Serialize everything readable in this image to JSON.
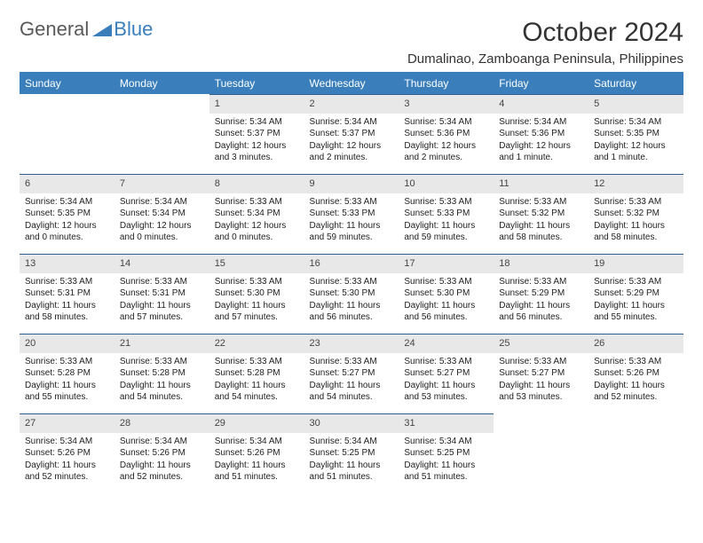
{
  "logo": {
    "general": "General",
    "blue": "Blue"
  },
  "title": "October 2024",
  "location": "Dumalinao, Zamboanga Peninsula, Philippines",
  "colors": {
    "header_bg": "#3a7fbc",
    "header_text": "#ffffff",
    "daynum_bg": "#e8e8e8",
    "divider": "#3a7fbc",
    "daynum_border": "#2c5f8d"
  },
  "weekdays": [
    "Sunday",
    "Monday",
    "Tuesday",
    "Wednesday",
    "Thursday",
    "Friday",
    "Saturday"
  ],
  "weeks": [
    [
      null,
      null,
      {
        "n": "1",
        "sr": "5:34 AM",
        "ss": "5:37 PM",
        "dl": "12 hours and 3 minutes."
      },
      {
        "n": "2",
        "sr": "5:34 AM",
        "ss": "5:37 PM",
        "dl": "12 hours and 2 minutes."
      },
      {
        "n": "3",
        "sr": "5:34 AM",
        "ss": "5:36 PM",
        "dl": "12 hours and 2 minutes."
      },
      {
        "n": "4",
        "sr": "5:34 AM",
        "ss": "5:36 PM",
        "dl": "12 hours and 1 minute."
      },
      {
        "n": "5",
        "sr": "5:34 AM",
        "ss": "5:35 PM",
        "dl": "12 hours and 1 minute."
      }
    ],
    [
      {
        "n": "6",
        "sr": "5:34 AM",
        "ss": "5:35 PM",
        "dl": "12 hours and 0 minutes."
      },
      {
        "n": "7",
        "sr": "5:34 AM",
        "ss": "5:34 PM",
        "dl": "12 hours and 0 minutes."
      },
      {
        "n": "8",
        "sr": "5:33 AM",
        "ss": "5:34 PM",
        "dl": "12 hours and 0 minutes."
      },
      {
        "n": "9",
        "sr": "5:33 AM",
        "ss": "5:33 PM",
        "dl": "11 hours and 59 minutes."
      },
      {
        "n": "10",
        "sr": "5:33 AM",
        "ss": "5:33 PM",
        "dl": "11 hours and 59 minutes."
      },
      {
        "n": "11",
        "sr": "5:33 AM",
        "ss": "5:32 PM",
        "dl": "11 hours and 58 minutes."
      },
      {
        "n": "12",
        "sr": "5:33 AM",
        "ss": "5:32 PM",
        "dl": "11 hours and 58 minutes."
      }
    ],
    [
      {
        "n": "13",
        "sr": "5:33 AM",
        "ss": "5:31 PM",
        "dl": "11 hours and 58 minutes."
      },
      {
        "n": "14",
        "sr": "5:33 AM",
        "ss": "5:31 PM",
        "dl": "11 hours and 57 minutes."
      },
      {
        "n": "15",
        "sr": "5:33 AM",
        "ss": "5:30 PM",
        "dl": "11 hours and 57 minutes."
      },
      {
        "n": "16",
        "sr": "5:33 AM",
        "ss": "5:30 PM",
        "dl": "11 hours and 56 minutes."
      },
      {
        "n": "17",
        "sr": "5:33 AM",
        "ss": "5:30 PM",
        "dl": "11 hours and 56 minutes."
      },
      {
        "n": "18",
        "sr": "5:33 AM",
        "ss": "5:29 PM",
        "dl": "11 hours and 56 minutes."
      },
      {
        "n": "19",
        "sr": "5:33 AM",
        "ss": "5:29 PM",
        "dl": "11 hours and 55 minutes."
      }
    ],
    [
      {
        "n": "20",
        "sr": "5:33 AM",
        "ss": "5:28 PM",
        "dl": "11 hours and 55 minutes."
      },
      {
        "n": "21",
        "sr": "5:33 AM",
        "ss": "5:28 PM",
        "dl": "11 hours and 54 minutes."
      },
      {
        "n": "22",
        "sr": "5:33 AM",
        "ss": "5:28 PM",
        "dl": "11 hours and 54 minutes."
      },
      {
        "n": "23",
        "sr": "5:33 AM",
        "ss": "5:27 PM",
        "dl": "11 hours and 54 minutes."
      },
      {
        "n": "24",
        "sr": "5:33 AM",
        "ss": "5:27 PM",
        "dl": "11 hours and 53 minutes."
      },
      {
        "n": "25",
        "sr": "5:33 AM",
        "ss": "5:27 PM",
        "dl": "11 hours and 53 minutes."
      },
      {
        "n": "26",
        "sr": "5:33 AM",
        "ss": "5:26 PM",
        "dl": "11 hours and 52 minutes."
      }
    ],
    [
      {
        "n": "27",
        "sr": "5:34 AM",
        "ss": "5:26 PM",
        "dl": "11 hours and 52 minutes."
      },
      {
        "n": "28",
        "sr": "5:34 AM",
        "ss": "5:26 PM",
        "dl": "11 hours and 52 minutes."
      },
      {
        "n": "29",
        "sr": "5:34 AM",
        "ss": "5:26 PM",
        "dl": "11 hours and 51 minutes."
      },
      {
        "n": "30",
        "sr": "5:34 AM",
        "ss": "5:25 PM",
        "dl": "11 hours and 51 minutes."
      },
      {
        "n": "31",
        "sr": "5:34 AM",
        "ss": "5:25 PM",
        "dl": "11 hours and 51 minutes."
      },
      null,
      null
    ]
  ],
  "labels": {
    "sunrise": "Sunrise: ",
    "sunset": "Sunset: ",
    "daylight": "Daylight: "
  }
}
